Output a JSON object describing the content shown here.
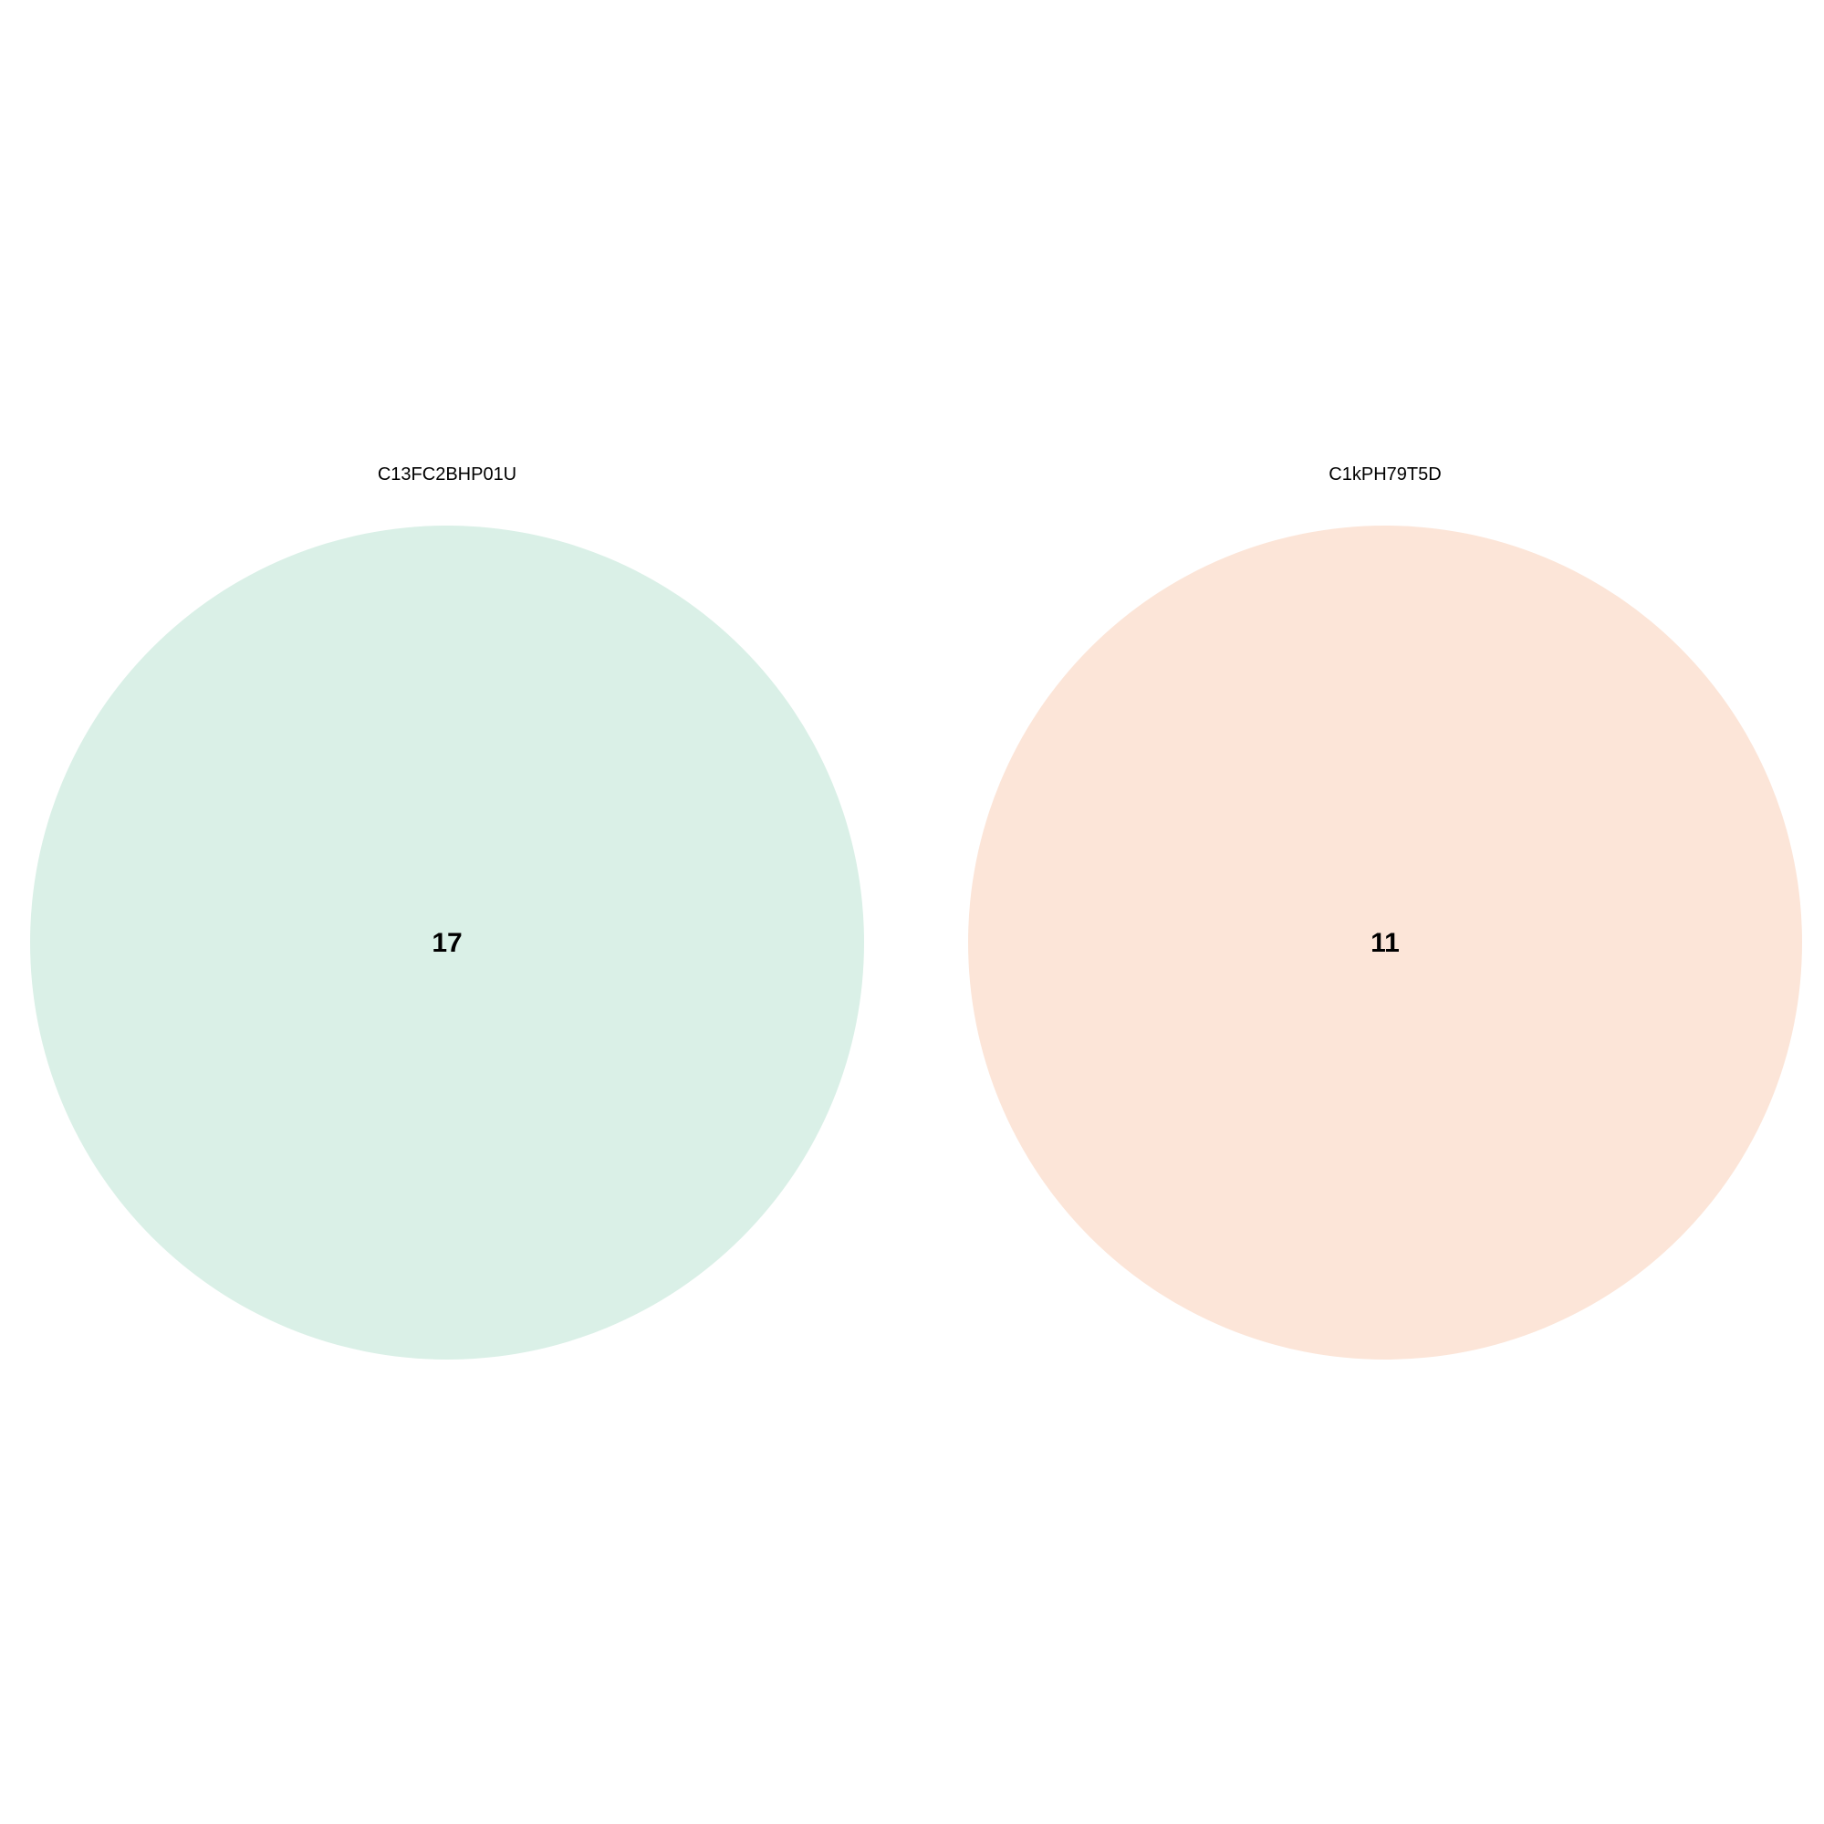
{
  "diagram": {
    "type": "venn",
    "sets": [
      {
        "label": "C13FC2BHP01U",
        "count": "17",
        "color": "#daf0e7"
      },
      {
        "label": "C1kPH79T5D",
        "count": "11",
        "color": "#fce5d8"
      }
    ]
  }
}
